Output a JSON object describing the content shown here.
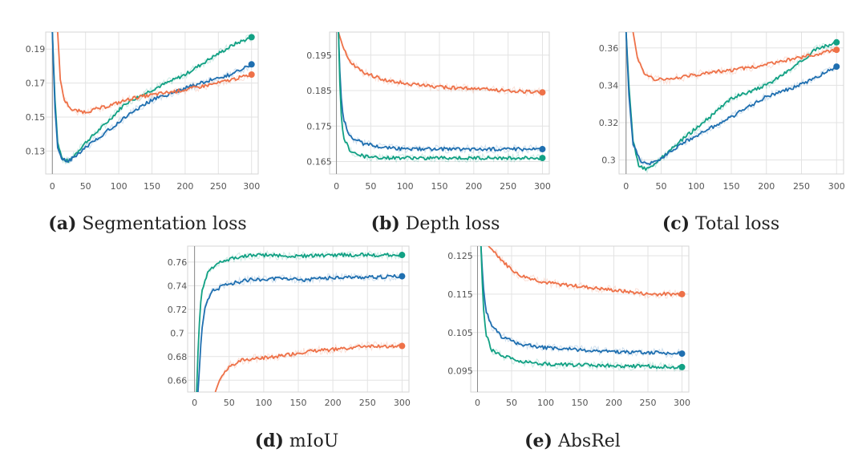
{
  "colors": {
    "teal": "#12a184",
    "blue": "#1f6fb0",
    "orange": "#ee7148"
  },
  "chart_data": [
    {
      "type": "line",
      "caption_label": "(a)",
      "caption_text": "Segmentation loss",
      "xlim": [
        -10,
        310
      ],
      "ylim": [
        0.1165,
        0.2
      ],
      "xticks": [
        0,
        50,
        100,
        150,
        200,
        250,
        300
      ],
      "yticks": [
        0.13,
        0.15,
        0.17,
        0.19
      ],
      "ytick_labels": [
        "0.13",
        "0.15",
        "0.17",
        "0.19"
      ],
      "series": [
        {
          "color": "teal",
          "points": [
            [
              0,
              0.2
            ],
            [
              4,
              0.16
            ],
            [
              8,
              0.135
            ],
            [
              15,
              0.125
            ],
            [
              25,
              0.124
            ],
            [
              50,
              0.135
            ],
            [
              80,
              0.146
            ],
            [
              110,
              0.158
            ],
            [
              150,
              0.166
            ],
            [
              200,
              0.175
            ],
            [
              240,
              0.185
            ],
            [
              275,
              0.193
            ],
            [
              300,
              0.197
            ]
          ]
        },
        {
          "color": "blue",
          "points": [
            [
              0,
              0.2
            ],
            [
              4,
              0.155
            ],
            [
              8,
              0.132
            ],
            [
              15,
              0.125
            ],
            [
              25,
              0.124
            ],
            [
              50,
              0.132
            ],
            [
              80,
              0.141
            ],
            [
              120,
              0.153
            ],
            [
              150,
              0.16
            ],
            [
              200,
              0.167
            ],
            [
              240,
              0.172
            ],
            [
              270,
              0.175
            ],
            [
              300,
              0.181
            ]
          ]
        },
        {
          "color": "orange",
          "points": [
            [
              8,
              0.2
            ],
            [
              12,
              0.172
            ],
            [
              18,
              0.16
            ],
            [
              30,
              0.154
            ],
            [
              50,
              0.153
            ],
            [
              80,
              0.156
            ],
            [
              120,
              0.161
            ],
            [
              150,
              0.163
            ],
            [
              200,
              0.166
            ],
            [
              250,
              0.17
            ],
            [
              300,
              0.175
            ]
          ]
        }
      ]
    },
    {
      "type": "line",
      "caption_label": "(b)",
      "caption_text": "Depth loss",
      "xlim": [
        -10,
        310
      ],
      "ylim": [
        0.1615,
        0.2015
      ],
      "xticks": [
        0,
        50,
        100,
        150,
        200,
        250,
        300
      ],
      "yticks": [
        0.165,
        0.175,
        0.185,
        0.195
      ],
      "ytick_labels": [
        "0.165",
        "0.175",
        "0.185",
        "0.195"
      ],
      "series": [
        {
          "color": "orange",
          "points": [
            [
              3,
              0.2015
            ],
            [
              10,
              0.197
            ],
            [
              20,
              0.193
            ],
            [
              40,
              0.19
            ],
            [
              70,
              0.188
            ],
            [
              100,
              0.187
            ],
            [
              150,
              0.186
            ],
            [
              200,
              0.1855
            ],
            [
              250,
              0.185
            ],
            [
              300,
              0.1845
            ]
          ]
        },
        {
          "color": "blue",
          "points": [
            [
              3,
              0.2015
            ],
            [
              6,
              0.185
            ],
            [
              10,
              0.177
            ],
            [
              20,
              0.172
            ],
            [
              40,
              0.17
            ],
            [
              70,
              0.169
            ],
            [
              100,
              0.1685
            ],
            [
              150,
              0.1685
            ],
            [
              200,
              0.1685
            ],
            [
              250,
              0.1685
            ],
            [
              300,
              0.1685
            ]
          ]
        },
        {
          "color": "teal",
          "points": [
            [
              3,
              0.2015
            ],
            [
              6,
              0.18
            ],
            [
              10,
              0.172
            ],
            [
              20,
              0.168
            ],
            [
              40,
              0.1665
            ],
            [
              70,
              0.166
            ],
            [
              100,
              0.166
            ],
            [
              150,
              0.166
            ],
            [
              200,
              0.166
            ],
            [
              250,
              0.166
            ],
            [
              300,
              0.166
            ]
          ]
        }
      ]
    },
    {
      "type": "line",
      "caption_label": "(c)",
      "caption_text": "Total loss",
      "xlim": [
        -10,
        310
      ],
      "ylim": [
        0.2925,
        0.3685
      ],
      "xticks": [
        0,
        50,
        100,
        150,
        200,
        250,
        300
      ],
      "yticks": [
        0.3,
        0.32,
        0.34,
        0.36
      ],
      "ytick_labels": [
        "0.3",
        "0.32",
        "0.34",
        "0.36"
      ],
      "series": [
        {
          "color": "teal",
          "points": [
            [
              0,
              0.3685
            ],
            [
              4,
              0.34
            ],
            [
              10,
              0.31
            ],
            [
              18,
              0.297
            ],
            [
              28,
              0.295
            ],
            [
              45,
              0.299
            ],
            [
              80,
              0.311
            ],
            [
              120,
              0.323
            ],
            [
              150,
              0.333
            ],
            [
              200,
              0.34
            ],
            [
              240,
              0.35
            ],
            [
              270,
              0.359
            ],
            [
              300,
              0.363
            ]
          ]
        },
        {
          "color": "blue",
          "points": [
            [
              0,
              0.3685
            ],
            [
              4,
              0.335
            ],
            [
              10,
              0.308
            ],
            [
              20,
              0.3
            ],
            [
              30,
              0.297
            ],
            [
              50,
              0.301
            ],
            [
              80,
              0.309
            ],
            [
              120,
              0.317
            ],
            [
              150,
              0.323
            ],
            [
              200,
              0.334
            ],
            [
              240,
              0.339
            ],
            [
              270,
              0.344
            ],
            [
              300,
              0.35
            ]
          ]
        },
        {
          "color": "orange",
          "points": [
            [
              10,
              0.3685
            ],
            [
              16,
              0.355
            ],
            [
              25,
              0.347
            ],
            [
              40,
              0.343
            ],
            [
              60,
              0.343
            ],
            [
              90,
              0.345
            ],
            [
              120,
              0.347
            ],
            [
              150,
              0.348
            ],
            [
              200,
              0.351
            ],
            [
              250,
              0.355
            ],
            [
              300,
              0.359
            ]
          ]
        }
      ]
    },
    {
      "type": "line",
      "caption_label": "(d)",
      "caption_text": "mIoU",
      "xlim": [
        -10,
        310
      ],
      "ylim": [
        0.65,
        0.7735
      ],
      "xticks": [
        0,
        50,
        100,
        150,
        200,
        250,
        300
      ],
      "yticks": [
        0.66,
        0.68,
        0.7,
        0.72,
        0.74,
        0.76
      ],
      "ytick_labels": [
        "0.66",
        "0.68",
        "0.7",
        "0.72",
        "0.74",
        "0.76"
      ],
      "series": [
        {
          "color": "teal",
          "points": [
            [
              3,
              0.65
            ],
            [
              6,
              0.7
            ],
            [
              10,
              0.735
            ],
            [
              20,
              0.753
            ],
            [
              40,
              0.761
            ],
            [
              70,
              0.765
            ],
            [
              100,
              0.766
            ],
            [
              150,
              0.765
            ],
            [
              200,
              0.766
            ],
            [
              250,
              0.766
            ],
            [
              300,
              0.766
            ]
          ]
        },
        {
          "color": "blue",
          "points": [
            [
              5,
              0.65
            ],
            [
              10,
              0.7
            ],
            [
              15,
              0.722
            ],
            [
              25,
              0.735
            ],
            [
              45,
              0.741
            ],
            [
              80,
              0.745
            ],
            [
              120,
              0.746
            ],
            [
              160,
              0.745
            ],
            [
              200,
              0.747
            ],
            [
              250,
              0.747
            ],
            [
              300,
              0.748
            ]
          ]
        },
        {
          "color": "orange",
          "points": [
            [
              30,
              0.65
            ],
            [
              38,
              0.663
            ],
            [
              50,
              0.672
            ],
            [
              70,
              0.677
            ],
            [
              100,
              0.679
            ],
            [
              130,
              0.681
            ],
            [
              160,
              0.684
            ],
            [
              200,
              0.686
            ],
            [
              250,
              0.689
            ],
            [
              300,
              0.689
            ]
          ]
        }
      ]
    },
    {
      "type": "line",
      "caption_label": "(e)",
      "caption_text": "AbsRel",
      "xlim": [
        -10,
        310
      ],
      "ylim": [
        0.0895,
        0.1275
      ],
      "xticks": [
        0,
        50,
        100,
        150,
        200,
        250,
        300
      ],
      "yticks": [
        0.095,
        0.105,
        0.115,
        0.125
      ],
      "ytick_labels": [
        "0.095",
        "0.105",
        "0.115",
        "0.125"
      ],
      "series": [
        {
          "color": "orange",
          "points": [
            [
              16,
              0.1275
            ],
            [
              25,
              0.126
            ],
            [
              40,
              0.123
            ],
            [
              60,
              0.12
            ],
            [
              100,
              0.118
            ],
            [
              150,
              0.117
            ],
            [
              200,
              0.116
            ],
            [
              250,
              0.115
            ],
            [
              300,
              0.115
            ]
          ]
        },
        {
          "color": "blue",
          "points": [
            [
              5,
              0.1275
            ],
            [
              8,
              0.118
            ],
            [
              12,
              0.111
            ],
            [
              20,
              0.107
            ],
            [
              35,
              0.104
            ],
            [
              60,
              0.102
            ],
            [
              100,
              0.101
            ],
            [
              150,
              0.1005
            ],
            [
              200,
              0.1
            ],
            [
              250,
              0.0998
            ],
            [
              300,
              0.0995
            ]
          ]
        },
        {
          "color": "teal",
          "points": [
            [
              5,
              0.1275
            ],
            [
              8,
              0.113
            ],
            [
              12,
              0.105
            ],
            [
              20,
              0.1005
            ],
            [
              35,
              0.099
            ],
            [
              60,
              0.0975
            ],
            [
              100,
              0.0968
            ],
            [
              150,
              0.0965
            ],
            [
              200,
              0.0963
            ],
            [
              250,
              0.0962
            ],
            [
              300,
              0.096
            ]
          ]
        }
      ]
    }
  ]
}
